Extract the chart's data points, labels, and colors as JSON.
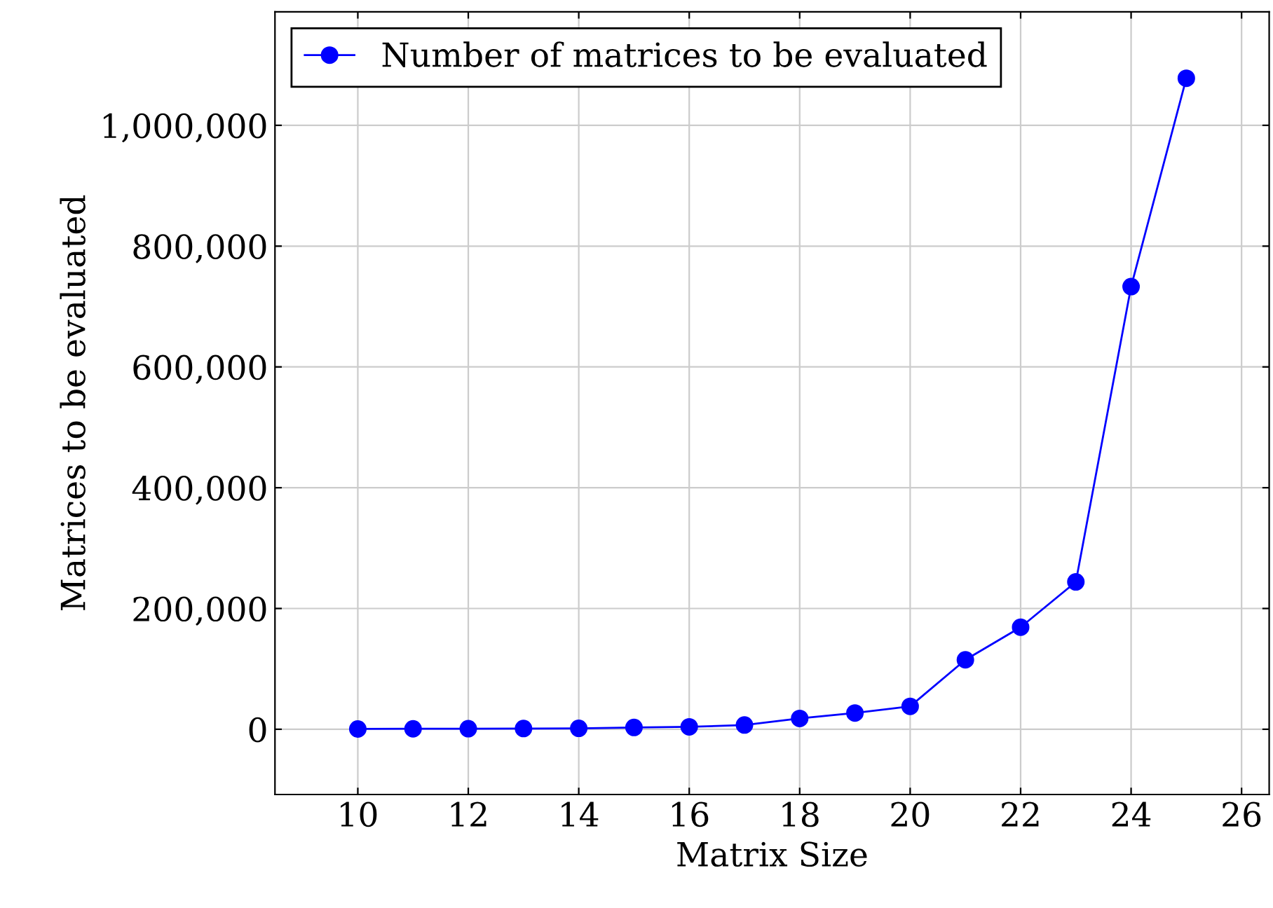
{
  "chart_data": {
    "type": "line",
    "xlabel": "Matrix Size",
    "ylabel": "Matrices to be evaluated",
    "x": [
      10,
      11,
      12,
      13,
      14,
      15,
      16,
      17,
      18,
      19,
      20,
      21,
      22,
      23,
      24,
      25
    ],
    "series": [
      {
        "name": "Number of matrices to be evaluated",
        "color": "#0000ff",
        "values": [
          500,
          800,
          1000,
          1200,
          1500,
          3000,
          4000,
          7000,
          18000,
          27000,
          38000,
          115000,
          169000,
          244000,
          733000,
          1078000
        ]
      }
    ],
    "xlim": [
      8.5,
      26.5
    ],
    "ylim": [
      -108000,
      1188000
    ],
    "xticks": [
      10,
      12,
      14,
      16,
      18,
      20,
      22,
      24,
      26
    ],
    "yticks": [
      {
        "value": 0,
        "label": "0"
      },
      {
        "value": 200000,
        "label": "200,000"
      },
      {
        "value": 400000,
        "label": "400,000"
      },
      {
        "value": 600000,
        "label": "600,000"
      },
      {
        "value": 800000,
        "label": "800,000"
      },
      {
        "value": 1000000,
        "label": "1,000,000"
      }
    ],
    "grid": true,
    "legend": "top left",
    "marker": "circle",
    "line_style": "solid"
  }
}
